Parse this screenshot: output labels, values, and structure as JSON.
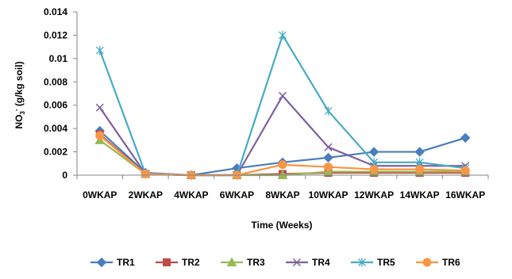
{
  "chart_data": {
    "type": "line",
    "xlabel": "Time (Weeks)",
    "ylabel_main": "NO",
    "ylabel_sub": "3",
    "ylabel_sup": "-",
    "ylabel_rest": " (g/kg soil)",
    "categories": [
      "0WKAP",
      "2WKAP",
      "4WKAP",
      "6WKAP",
      "8WKAP",
      "10WKAP",
      "12WKAP",
      "14WKAP",
      "16WKAP"
    ],
    "ylim": [
      0,
      0.014
    ],
    "yticks": [
      "0",
      "0.002",
      "0.004",
      "0.006",
      "0.008",
      "0.01",
      "0.012",
      "0.014"
    ],
    "legend_position": "bottom",
    "series": [
      {
        "name": "TR1",
        "color": "#4A7EBB",
        "marker": "diamond",
        "values": [
          0.0038,
          0.0002,
          0.0,
          0.0006,
          0.0011,
          0.0015,
          0.002,
          0.002,
          0.0032
        ]
      },
      {
        "name": "TR2",
        "color": "#BE4B48",
        "marker": "square",
        "values": [
          0.0035,
          0.0001,
          0.0,
          0.0,
          0.0001,
          0.0002,
          0.0002,
          0.0002,
          0.0002
        ]
      },
      {
        "name": "TR3",
        "color": "#98B954",
        "marker": "triangle",
        "values": [
          0.003,
          0.0001,
          0.0,
          0.0,
          0.0,
          0.0003,
          0.0003,
          0.0003,
          0.0003
        ]
      },
      {
        "name": "TR4",
        "color": "#7D60A0",
        "marker": "x",
        "values": [
          0.0058,
          0.0001,
          0.0,
          0.0,
          0.0068,
          0.0024,
          0.0008,
          0.0008,
          0.0008
        ]
      },
      {
        "name": "TR5",
        "color": "#46AAC5",
        "marker": "star",
        "values": [
          0.0107,
          0.0001,
          0.0,
          0.0,
          0.012,
          0.0055,
          0.0011,
          0.0011,
          0.0006
        ]
      },
      {
        "name": "TR6",
        "color": "#F79646",
        "marker": "circle",
        "values": [
          0.0034,
          0.0001,
          0.0,
          0.0,
          0.0009,
          0.0007,
          0.0005,
          0.0005,
          0.0004
        ]
      }
    ]
  }
}
